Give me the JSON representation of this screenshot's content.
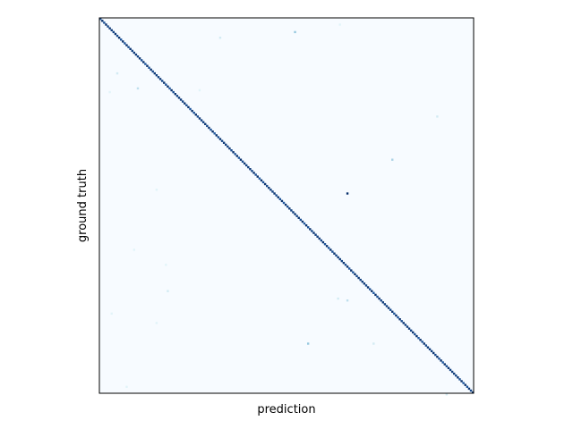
{
  "chart_data": {
    "type": "heatmap",
    "title": "",
    "xlabel": "prediction",
    "ylabel": "ground truth",
    "n_classes": 200,
    "value_range": [
      0,
      1
    ],
    "diagonal_value": 0.85,
    "colormap": [
      "#f7fbff",
      "#e0f3f8",
      "#9ecae1",
      "#41b6c4",
      "#1d91c0",
      "#225ea8",
      "#08306b"
    ],
    "xticks": [],
    "yticks": [],
    "grid": false,
    "legend": "none",
    "off_diagonal_cells": [
      {
        "row": 7,
        "col": 104,
        "value": 0.35
      },
      {
        "row": 10,
        "col": 64,
        "value": 0.2
      },
      {
        "row": 3,
        "col": 128,
        "value": 0.15
      },
      {
        "row": 29,
        "col": 9,
        "value": 0.2
      },
      {
        "row": 37,
        "col": 20,
        "value": 0.25
      },
      {
        "row": 38,
        "col": 53,
        "value": 0.15
      },
      {
        "row": 39,
        "col": 5,
        "value": 0.15
      },
      {
        "row": 52,
        "col": 180,
        "value": 0.2
      },
      {
        "row": 75,
        "col": 156,
        "value": 0.3
      },
      {
        "row": 91,
        "col": 30,
        "value": 0.15
      },
      {
        "row": 93,
        "col": 132,
        "value": 1.0
      },
      {
        "row": 123,
        "col": 18,
        "value": 0.15
      },
      {
        "row": 131,
        "col": 35,
        "value": 0.15
      },
      {
        "row": 145,
        "col": 36,
        "value": 0.2
      },
      {
        "row": 149,
        "col": 127,
        "value": 0.2
      },
      {
        "row": 150,
        "col": 132,
        "value": 0.25
      },
      {
        "row": 157,
        "col": 6,
        "value": 0.15
      },
      {
        "row": 162,
        "col": 30,
        "value": 0.15
      },
      {
        "row": 173,
        "col": 111,
        "value": 0.35
      },
      {
        "row": 173,
        "col": 146,
        "value": 0.2
      },
      {
        "row": 196,
        "col": 14,
        "value": 0.15
      },
      {
        "row": 200,
        "col": 185,
        "value": 0.2
      }
    ]
  }
}
